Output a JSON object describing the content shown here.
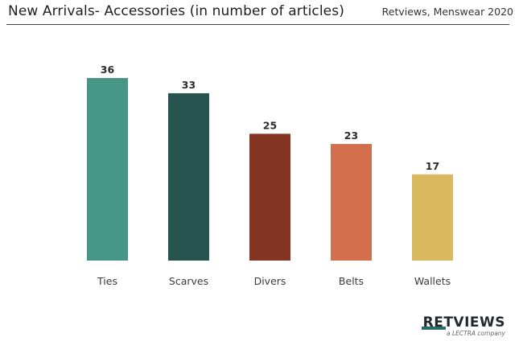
{
  "header": {
    "title": "New Arrivals- Accessories (in number of articles)",
    "source": "Retviews, Menswear 2020"
  },
  "chart_data": {
    "type": "bar",
    "title": "New Arrivals- Accessories (in number of articles)",
    "xlabel": "",
    "ylabel": "",
    "categories": [
      "Ties",
      "Scarves",
      "Divers",
      "Belts",
      "Wallets"
    ],
    "values": [
      36,
      33,
      25,
      23,
      17
    ],
    "colors": [
      "#469688",
      "#285450",
      "#833423",
      "#d36f4c",
      "#d9b860"
    ],
    "ylim": [
      0,
      36
    ],
    "grid": false,
    "legend": "none",
    "data_labels": true
  },
  "logo": {
    "wordmark": "RETVIEWS",
    "tagline": "a LECTRA company",
    "accent_color": "#2a6b68"
  }
}
